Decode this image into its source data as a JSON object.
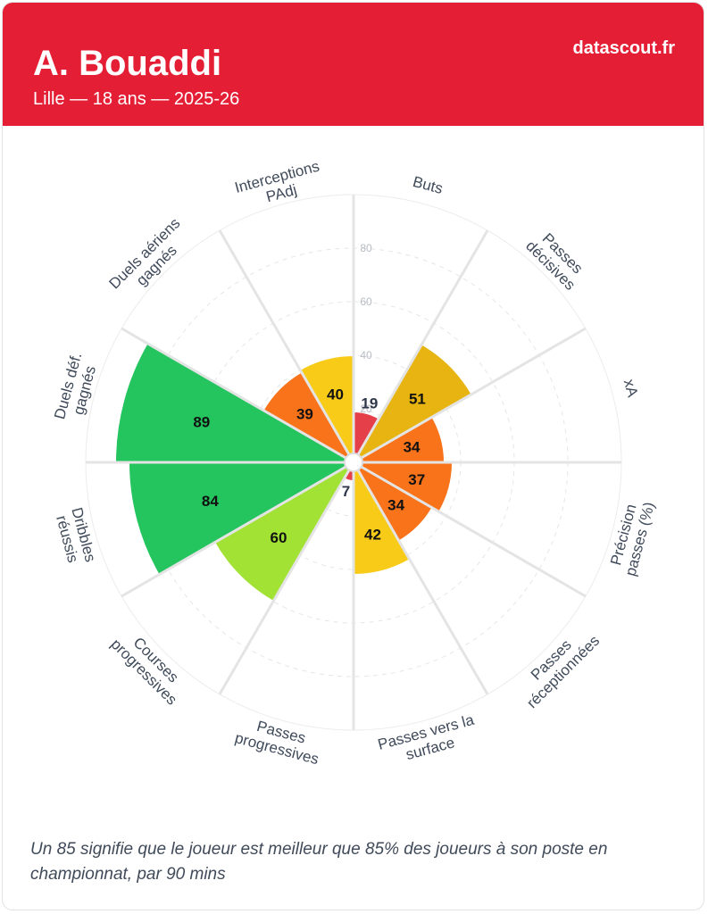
{
  "header": {
    "name": "A. Bouaddi",
    "meta": "Lille — 18 ans — 2025-26",
    "brand": "datascout.fr"
  },
  "footnote": "Un 85 signifie que le joueur est meilleur que 85% des joueurs à son poste en championnat, par 90 mins",
  "chart_data": {
    "type": "polar-area",
    "scale": {
      "min": 0,
      "max": 100
    },
    "ticks": [
      "20",
      "40",
      "60",
      "80"
    ],
    "categories": [
      "Buts",
      "Passes décisives",
      "xA",
      "Précision passes (%)",
      "Passes réceptionnées",
      "Passes vers la surface",
      "Passes progressives",
      "Courses progressives",
      "Dribbles réussis",
      "Duels déf. gagnés",
      "Duels aériens gagnés",
      "Interceptions PAdj"
    ],
    "category_lines": [
      [
        "Buts"
      ],
      [
        "Passes",
        "décisives"
      ],
      [
        "xA"
      ],
      [
        "Précision",
        "passes (%)"
      ],
      [
        "Passes",
        "réceptionnées"
      ],
      [
        "Passes vers la",
        "surface"
      ],
      [
        "Passes",
        "progressives"
      ],
      [
        "Courses",
        "progressives"
      ],
      [
        "Dribbles",
        "réussis"
      ],
      [
        "Duels déf.",
        "gagnés"
      ],
      [
        "Duels aériens",
        "gagnés"
      ],
      [
        "Interceptions",
        "PAdj"
      ]
    ],
    "values": [
      19,
      51,
      34,
      37,
      34,
      42,
      7,
      60,
      84,
      89,
      39,
      40
    ],
    "value_labels": [
      "19",
      "51",
      "34",
      "37",
      "34",
      "42",
      "7",
      "60",
      "84",
      "89",
      "39",
      "40"
    ],
    "colors": [
      "#e5404a",
      "#e8b411",
      "#f9731a",
      "#f9731a",
      "#f9731a",
      "#f9cb19",
      "#e5404a",
      "#a2e235",
      "#24c45e",
      "#24c45e",
      "#f9731a",
      "#f9cb19"
    ]
  }
}
